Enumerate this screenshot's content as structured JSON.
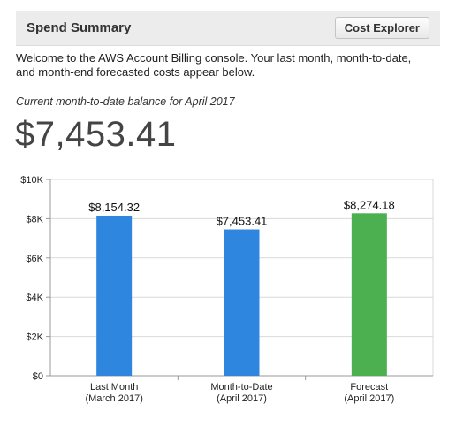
{
  "header": {
    "title": "Spend Summary",
    "cost_explorer_label": "Cost Explorer"
  },
  "intro_text": "Welcome to the AWS Account Billing console. Your last month, month-to-date, and month-end forecasted costs appear below.",
  "balance": {
    "label": "Current month-to-date balance for April 2017",
    "value": "$7,453.41"
  },
  "chart_data": {
    "type": "bar",
    "categories": [
      [
        "Last Month",
        "(March 2017)"
      ],
      [
        "Month-to-Date",
        "(April 2017)"
      ],
      [
        "Forecast",
        "(April 2017)"
      ]
    ],
    "values": [
      8154.32,
      7453.41,
      8274.18
    ],
    "value_labels": [
      "$8,154.32",
      "$7,453.41",
      "$8,274.18"
    ],
    "bar_colors": [
      "#2e86de",
      "#2e86de",
      "#4caf50"
    ],
    "y_ticks": [
      0,
      2000,
      4000,
      6000,
      8000,
      10000
    ],
    "y_tick_labels": [
      "$0",
      "$2K",
      "$4K",
      "$6K",
      "$8K",
      "$10K"
    ],
    "ylim": [
      0,
      10000
    ],
    "grid": true
  }
}
